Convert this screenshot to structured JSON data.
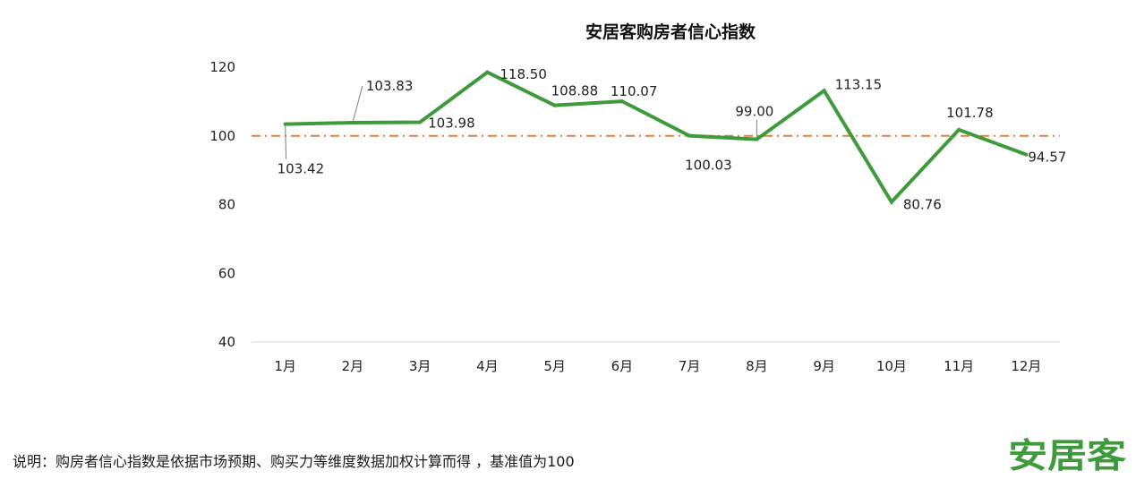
{
  "colors": {
    "line": "#3f9a3b",
    "reference_line": "#e0823c",
    "axis": "#d9d9d9",
    "leader": "#7f7f7f",
    "logo": "#3f9a3b"
  },
  "chart_data": {
    "type": "line",
    "title": "安居客购房者信心指数",
    "xlabel": "",
    "ylabel": "",
    "categories": [
      "1月",
      "2月",
      "3月",
      "4月",
      "5月",
      "6月",
      "7月",
      "8月",
      "9月",
      "10月",
      "11月",
      "12月"
    ],
    "series": [
      {
        "values": [
          103.42,
          103.83,
          103.98,
          118.5,
          108.88,
          110.07,
          100.03,
          99.0,
          113.15,
          80.76,
          101.78,
          94.57
        ],
        "labels": [
          "103.42",
          "103.83",
          "103.98",
          "118.50",
          "108.88",
          "110.07",
          "100.03",
          "99.00",
          "113.15",
          "80.76",
          "101.78",
          "94.57"
        ]
      }
    ],
    "reference_line": {
      "value": 100,
      "style": "dash-dot"
    },
    "ylim": [
      40,
      120
    ],
    "yticks": [
      "40",
      "60",
      "80",
      "100",
      "120"
    ],
    "grid": false,
    "legend": "none"
  },
  "footer": {
    "note": "说明：购房者信心指数是依据市场预期、购买力等维度数据加权计算而得 ，基准值为100"
  },
  "logo": {
    "text": "安居客"
  }
}
